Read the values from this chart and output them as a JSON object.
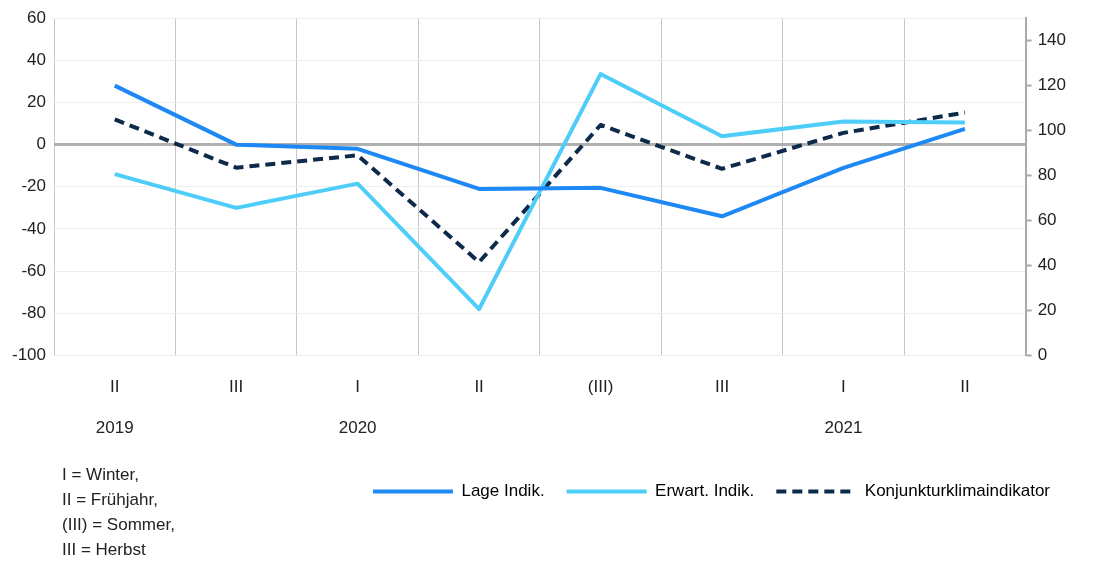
{
  "chart_data": {
    "type": "line",
    "categories": [
      "II\n2019",
      "III",
      "I\n2020",
      "II",
      "(III)",
      "III",
      "I\n2021",
      "II"
    ],
    "series": [
      {
        "name": "Lage Indik.",
        "color": "#1e88f5",
        "values": [
          28,
          0,
          -2,
          -21,
          -20.5,
          -34,
          -11,
          7.5
        ]
      },
      {
        "name": "Erwart. Indik.",
        "color": "#4fcdf9",
        "values": [
          -14,
          -30,
          -18.5,
          -78,
          33.5,
          4,
          11,
          10.5
        ]
      },
      {
        "name": "Konjunkturklimaindikator",
        "color": "#0e2a4a",
        "axis": "y2",
        "line_style": "dashed",
        "values": [
          105,
          83.5,
          89,
          41.5,
          102.5,
          83,
          99,
          108
        ]
      }
    ],
    "ylim": [
      -100,
      60
    ],
    "yticks": [
      -100,
      -80,
      -60,
      -40,
      -20,
      0,
      20,
      40,
      60
    ],
    "y2lim": [
      0,
      150
    ],
    "y2ticks": [
      0,
      20,
      40,
      60,
      80,
      100,
      120,
      140
    ],
    "grid": true,
    "legend": "bottom right",
    "marker": "none",
    "line_style": "solid",
    "annotations": [
      "I = Winter,\nII = Frühjahr,\n(III) = Sommer,\nIII = Herbst"
    ]
  }
}
